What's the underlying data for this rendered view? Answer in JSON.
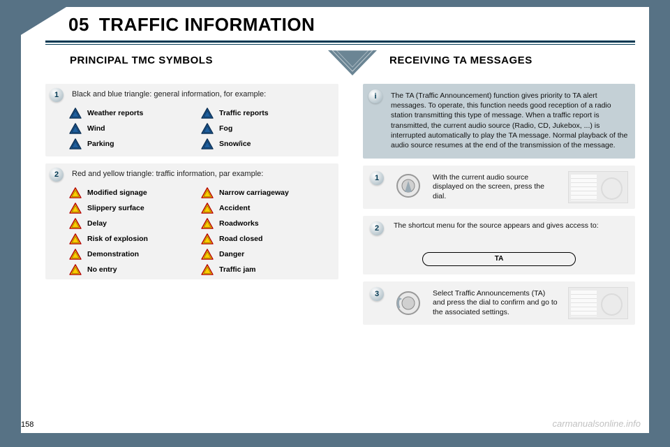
{
  "page": {
    "number": "158",
    "chapter_num": "05",
    "chapter_title": "TRAFFIC INFORMATION",
    "watermark": "carmanualsonline.info"
  },
  "subheaders": {
    "left": "PRINCIPAL TMC SYMBOLS",
    "right": "RECEIVING TA MESSAGES"
  },
  "colors": {
    "page_bg": "#577285",
    "rule": "#003852",
    "blue_tri_fill": "#1e5f9e",
    "blue_tri_stroke": "#0b2e52",
    "yellow_tri_fill": "#ffcc00",
    "yellow_tri_stroke": "#b30000",
    "info_box_bg": "#c4d0d6",
    "grey_box_bg": "#f2f2f2"
  },
  "tmc": {
    "section1": {
      "num": "1",
      "intro": "Black and blue triangle: general information, for example:",
      "items_left": [
        "Weather reports",
        "Wind",
        "Parking"
      ],
      "items_right": [
        "Traffic reports",
        "Fog",
        "Snow/ice"
      ]
    },
    "section2": {
      "num": "2",
      "intro": "Red and yellow triangle: traffic information, par example:",
      "items_left": [
        "Modified signage",
        "Slippery surface",
        "Delay",
        "Risk of explosion",
        "Demonstration",
        "No entry"
      ],
      "items_right": [
        "Narrow carriageway",
        "Accident",
        "Roadworks",
        "Road closed",
        "Danger",
        "Traffic jam"
      ]
    }
  },
  "ta": {
    "info_icon": "i",
    "info_text": "The TA (Traffic Announcement) function gives priority to TA alert messages. To operate, this function needs good reception of a radio station transmitting this type of message. When a traffic report is transmitted, the current audio source (Radio, CD, Jukebox, ...) is interrupted automatically to play the TA message. Normal playback of the audio source resumes at the end of the transmission of the message.",
    "step1": {
      "num": "1",
      "text": "With the current audio source displayed on the screen, press the dial."
    },
    "step2": {
      "num": "2",
      "text": "The shortcut menu for the source appears and gives access to:",
      "pill": "TA"
    },
    "step3": {
      "num": "3",
      "text": "Select Traffic Announcements (TA) and press the dial to confirm and go to the associated settings."
    }
  }
}
